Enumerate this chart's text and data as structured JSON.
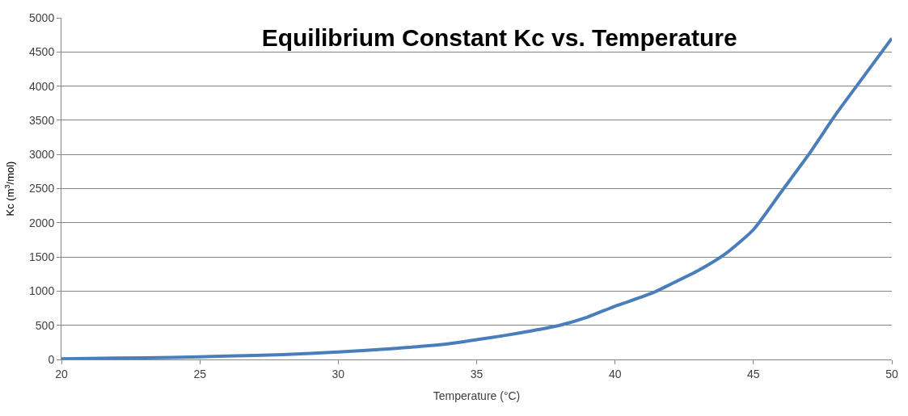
{
  "chart_data": {
    "type": "line",
    "title": "Equilibrium Constant Kc vs. Temperature",
    "xlabel": "Temperature (°C)",
    "ylabel": "Kc (m$^{3}$/mol)",
    "x": [
      20,
      22,
      24,
      26,
      28,
      30,
      32,
      34,
      35,
      36,
      37,
      38,
      39,
      40,
      41,
      41.5,
      42,
      43,
      44,
      45,
      46,
      47,
      48,
      49,
      50
    ],
    "series": [
      {
        "color": "#4a7ebb",
        "values": [
          10,
          20,
          30,
          50,
          70,
          110,
          160,
          230,
          290,
          350,
          420,
          500,
          620,
          780,
          920,
          1000,
          1100,
          1300,
          1550,
          1900,
          2450,
          3000,
          3600,
          4150,
          4700
        ]
      }
    ],
    "xlim": [
      20,
      50
    ],
    "xticks": [
      20,
      25,
      30,
      35,
      40,
      45,
      50
    ],
    "ylim": [
      0,
      5000
    ],
    "yticks": [
      0,
      500,
      1000,
      1500,
      2000,
      2500,
      3000,
      3500,
      4000,
      4500,
      5000
    ],
    "grid": "y",
    "legend": false,
    "marker": "none",
    "line_style": "solid"
  }
}
